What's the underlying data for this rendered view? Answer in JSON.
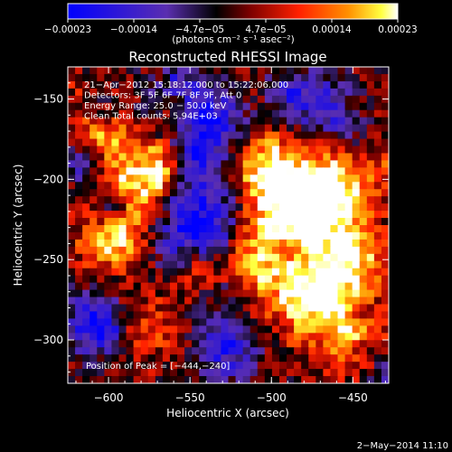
{
  "chart_data": {
    "type": "heatmap",
    "title": "Reconstructed RHESSI Image",
    "xlabel": "Heliocentric X (arcsec)",
    "ylabel": "Heliocentric Y (arcsec)",
    "xlim": [
      -625,
      -428
    ],
    "ylim": [
      -327,
      -130
    ],
    "x_ticks": [
      -600,
      -550,
      -500,
      -450
    ],
    "x_tick_labels": [
      "−600",
      "−550",
      "−500",
      "−450"
    ],
    "y_ticks": [
      -150,
      -200,
      -250,
      -300
    ],
    "y_tick_labels": [
      "−150",
      "−200",
      "−250",
      "−300"
    ],
    "colorbar": {
      "range": [
        -0.00023,
        0.00023
      ],
      "tick_labels": [
        "−0.00023",
        "−0.00014",
        "−4.7e−05",
        "4.7e−05",
        "0.00014",
        "0.00023"
      ],
      "units_label": "(photons cm⁻² s⁻¹ asec⁻²)",
      "colors": [
        "#0000ff",
        "#5a2eb0",
        "#000000",
        "#7a0000",
        "#ff2000",
        "#ff9000",
        "#ffff40",
        "#ffffff"
      ]
    },
    "annotations": [
      "21−Apr−2012 15:18:12.000 to 15:22:06.000",
      "Detectors: 3F 5F 6F 7F 8F 9F, Att 0",
      "Energy Range: 25.0 − 50.0 keV",
      "Clean    Total counts: 5.94E+03"
    ],
    "peak_label": "Position of Peak = [−444,−240]",
    "peak": [
      -444,
      -240
    ]
  },
  "footer": {
    "date": "2−May−2014 11:10"
  }
}
